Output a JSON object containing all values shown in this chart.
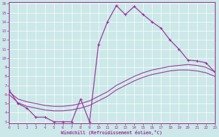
{
  "xlabel": "Windchill (Refroidissement éolien,°C)",
  "xlim": [
    0,
    23
  ],
  "ylim": [
    3,
    16
  ],
  "xticks": [
    0,
    1,
    2,
    3,
    4,
    5,
    6,
    7,
    8,
    9,
    10,
    11,
    12,
    13,
    14,
    15,
    16,
    17,
    18,
    19,
    20,
    21,
    22,
    23
  ],
  "yticks": [
    3,
    4,
    5,
    6,
    7,
    8,
    9,
    10,
    11,
    12,
    13,
    14,
    15,
    16
  ],
  "background_color": "#cce8e8",
  "line_color": "#993399",
  "curve1_x": [
    0,
    1,
    2,
    3,
    4,
    5,
    6,
    7,
    8,
    9,
    10,
    11,
    12,
    13,
    14,
    15,
    16,
    17,
    18,
    19,
    20,
    21,
    22,
    23
  ],
  "curve1_y": [
    6.5,
    5.0,
    4.5,
    3.5,
    3.5,
    3.0,
    3.0,
    3.0,
    5.5,
    3.0,
    11.5,
    14.0,
    15.8,
    14.8,
    15.7,
    14.8,
    14.0,
    13.3,
    12.0,
    11.0,
    9.8,
    9.7,
    9.5,
    8.5
  ],
  "curve2_x": [
    0,
    1,
    2,
    3,
    4,
    5,
    6,
    7,
    8,
    9,
    10,
    11,
    12,
    13,
    14,
    15,
    16,
    17,
    18,
    19,
    20,
    21,
    22,
    23
  ],
  "curve2_y": [
    6.3,
    5.5,
    5.2,
    5.0,
    4.8,
    4.7,
    4.7,
    4.8,
    5.0,
    5.3,
    5.8,
    6.3,
    7.0,
    7.5,
    8.0,
    8.4,
    8.7,
    8.9,
    9.1,
    9.2,
    9.3,
    9.2,
    9.0,
    8.5
  ],
  "curve3_x": [
    0,
    1,
    2,
    3,
    4,
    5,
    6,
    7,
    8,
    9,
    10,
    11,
    12,
    13,
    14,
    15,
    16,
    17,
    18,
    19,
    20,
    21,
    22,
    23
  ],
  "curve3_y": [
    6.0,
    5.1,
    4.7,
    4.5,
    4.3,
    4.2,
    4.2,
    4.3,
    4.5,
    4.8,
    5.3,
    5.8,
    6.5,
    7.0,
    7.5,
    7.9,
    8.2,
    8.4,
    8.6,
    8.7,
    8.7,
    8.6,
    8.4,
    8.0
  ]
}
